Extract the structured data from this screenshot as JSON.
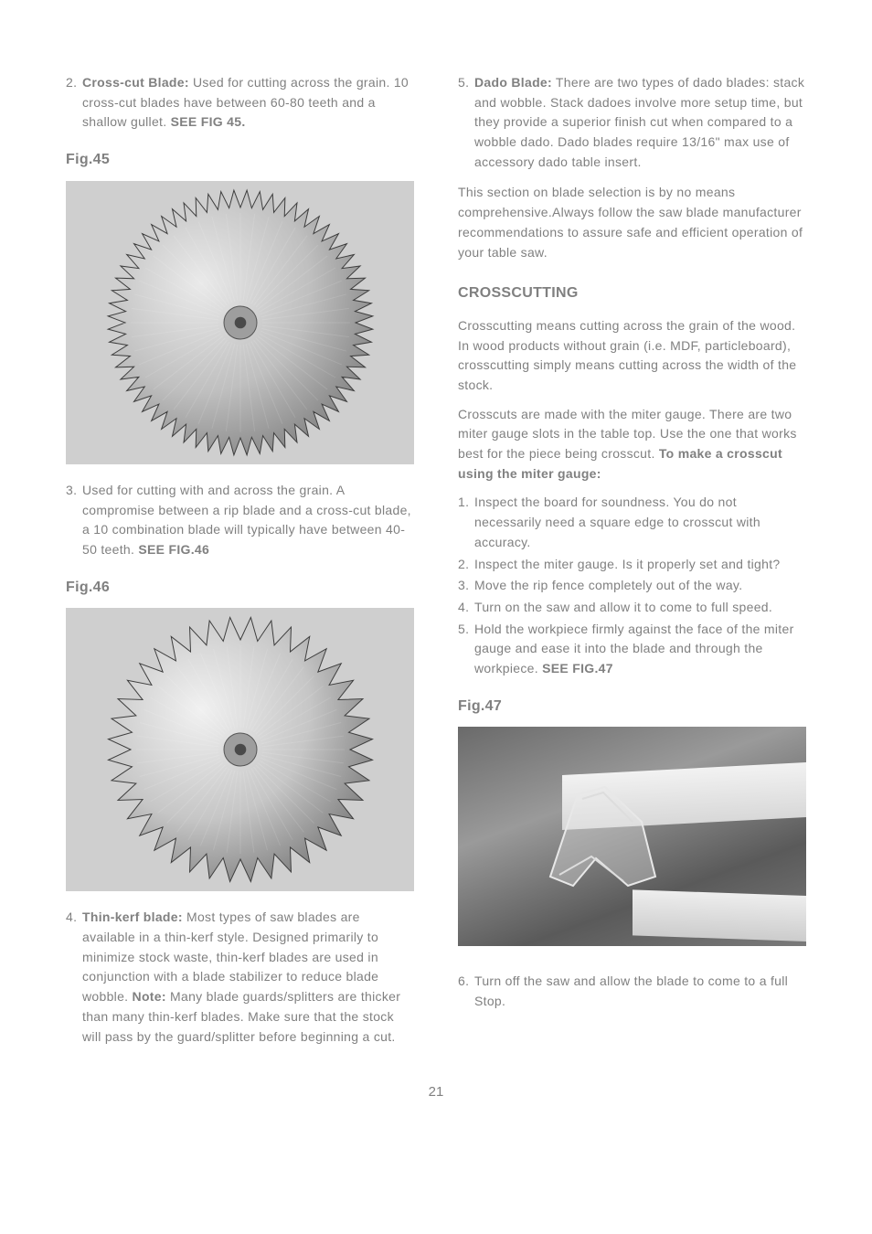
{
  "leftColumn": {
    "item2": {
      "num": "2.",
      "lead": "Cross-cut Blade:",
      "body": " Used for cutting across the grain. 10 cross-cut blades have between 60-80 teeth and a shallow gullet. ",
      "ref": "SEE FIG 45."
    },
    "fig45Label": "Fig.45",
    "fig45": {
      "toothCount": 64,
      "outerR": 145,
      "innerR": 126,
      "hubR": 18,
      "face": "#bfbfbf",
      "faceHi": "#eaeaea",
      "faceLo": "#7f7f7f",
      "edge": "#3e3e3e"
    },
    "item3": {
      "num": "3.",
      "body": "Used for cutting with and across the grain. A compromise between a rip blade and a cross-cut blade, a 10 combination blade will typically have between 40-50 teeth. ",
      "ref": "SEE FIG.46"
    },
    "fig46Label": "Fig.46",
    "fig46": {
      "toothCount": 40,
      "outerR": 145,
      "innerR": 120,
      "hubR": 18,
      "face": "#c6c6c6",
      "faceHi": "#f1f1f1",
      "faceLo": "#7a7a7a",
      "edge": "#3e3e3e"
    },
    "item4": {
      "num": "4.",
      "lead": "Thin-kerf blade:",
      "body1": " Most types of saw blades are available in a thin-kerf style. Designed primarily to minimize stock waste, thin-kerf blades are used in conjunction with a blade stabilizer to reduce blade wobble. ",
      "note": "Note:",
      "body2": " Many blade guards/splitters are thicker than many thin-kerf blades. Make sure that the stock will pass by the guard/splitter before beginning a cut."
    }
  },
  "rightColumn": {
    "item5": {
      "num": "5.",
      "lead": "Dado Blade:",
      "body": " There are two types of dado blades: stack and wobble. Stack dadoes involve more setup time, but they provide a superior finish cut when compared to a wobble dado. Dado blades require 13/16\" max use of accessory dado table insert."
    },
    "paraSelect": "This section on blade selection is by no means comprehensive.Always follow the saw blade manufacturer recommendations to assure safe and efficient operation of your table saw.",
    "crosscutHeading": "CROSSCUTTING",
    "crosscutP1": "Crosscutting means cutting across the grain of the wood. In wood products without grain (i.e. MDF, particleboard), crosscutting simply means cutting across the width of the stock.",
    "crosscutP2a": "Crosscuts are made with the miter gauge. There are two miter gauge slots in the table top. Use the one that works best for the piece being crosscut. ",
    "crosscutP2b": "To make a crosscut using the miter gauge:",
    "steps": {
      "s1": {
        "n": "1.",
        "t": "Inspect the board for soundness. You do not necessarily need a square edge to crosscut with accuracy."
      },
      "s2": {
        "n": "2.",
        "t": "Inspect the miter gauge. Is it properly set and tight?"
      },
      "s3": {
        "n": "3.",
        "t": "Move the rip fence completely out of the way."
      },
      "s4": {
        "n": "4.",
        "t": "Turn on the saw and allow it to come to full speed."
      },
      "s5": {
        "n": "5.",
        "t": "Hold the workpiece firmly against the face of the miter gauge and ease it into the blade and through the workpiece.  ",
        "ref": "SEE FIG.47"
      },
      "s6": {
        "n": "6.",
        "t": "Turn off the saw and allow the blade to come to a full Stop."
      }
    },
    "fig47Label": "Fig.47"
  },
  "pageNumber": "21"
}
